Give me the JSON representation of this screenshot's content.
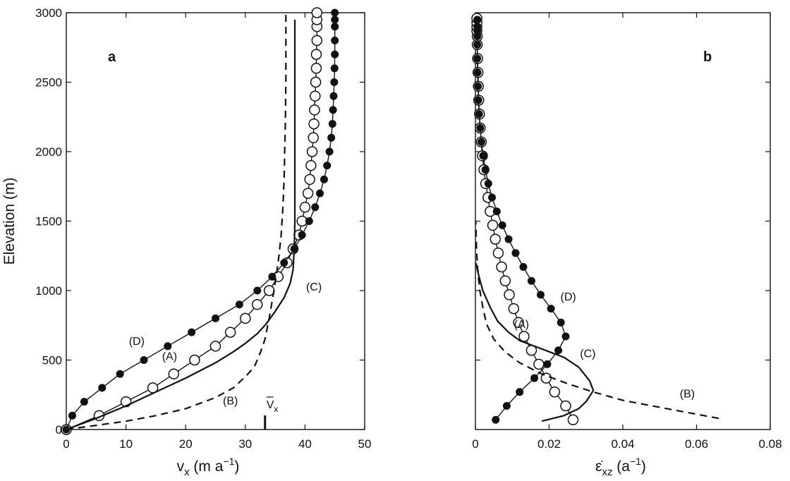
{
  "chart_data": [
    {
      "type": "line",
      "panel_label": "a",
      "xlabel": "v",
      "xlabel_sub": "x",
      "xlabel_unit": " (m a",
      "xlabel_exp": "−1",
      "xlabel_close": ")",
      "ylabel": "Elevation (m)",
      "xlim": [
        0,
        50
      ],
      "ylim": [
        0,
        3000
      ],
      "xticks": [
        "0",
        "10",
        "20",
        "30",
        "40",
        "50"
      ],
      "yticks": [
        "0",
        "500",
        "1000",
        "1500",
        "2000",
        "2500",
        "3000"
      ],
      "mean_marker": {
        "label": "V",
        "label_sub": "x",
        "x": 33.3
      },
      "series": [
        {
          "name": "(A)",
          "style": "open-circle",
          "x": [
            0,
            5.5,
            10,
            14.5,
            18,
            21.5,
            25,
            27.5,
            30,
            32,
            34,
            35.5,
            37,
            38,
            39,
            39.5,
            40,
            40.5,
            40.8,
            41,
            41.2,
            41.4,
            41.5,
            41.6,
            41.7,
            41.8,
            41.9,
            41.9,
            42,
            42,
            42,
            42
          ],
          "y": [
            0,
            100,
            200,
            300,
            400,
            500,
            600,
            700,
            800,
            900,
            1000,
            1100,
            1200,
            1300,
            1400,
            1500,
            1600,
            1700,
            1800,
            1900,
            2000,
            2100,
            2200,
            2300,
            2400,
            2500,
            2600,
            2700,
            2800,
            2900,
            2950,
            3000
          ]
        },
        {
          "name": "(B)",
          "style": "dashed",
          "x": [
            0,
            5,
            10,
            15,
            20,
            25,
            28,
            30,
            31.5,
            32.5,
            33.3,
            34,
            34.8,
            35.5,
            36,
            36.3,
            36.5,
            36.6,
            36.7,
            36.8,
            36.8,
            36.8
          ],
          "y": [
            0,
            30,
            60,
            100,
            150,
            230,
            300,
            380,
            450,
            550,
            650,
            800,
            1000,
            1200,
            1400,
            1600,
            1800,
            2000,
            2200,
            2500,
            2800,
            3000
          ]
        },
        {
          "name": "(C)",
          "style": "solid",
          "x": [
            0,
            5,
            10,
            15,
            20,
            25,
            28,
            30,
            32,
            33.5,
            35,
            36.5,
            37.5,
            38,
            38.2,
            38.3,
            38.3,
            38.3,
            38.3,
            38.3
          ],
          "y": [
            0,
            80,
            170,
            270,
            370,
            480,
            560,
            620,
            690,
            760,
            850,
            950,
            1050,
            1150,
            1300,
            1500,
            1800,
            2200,
            2600,
            2950
          ]
        },
        {
          "name": "(D)",
          "style": "filled-circle",
          "x": [
            0,
            1,
            3,
            6,
            9,
            13,
            17,
            21,
            25,
            29,
            32,
            34.5,
            36.5,
            38.2,
            39.5,
            40.7,
            41.7,
            42.5,
            43.2,
            43.7,
            44.1,
            44.4,
            44.6,
            44.7,
            44.8,
            44.9,
            44.95,
            45,
            45,
            45,
            45,
            45
          ],
          "y": [
            0,
            100,
            200,
            300,
            400,
            500,
            600,
            700,
            800,
            900,
            1000,
            1100,
            1200,
            1300,
            1400,
            1500,
            1600,
            1700,
            1800,
            1900,
            2000,
            2100,
            2200,
            2300,
            2400,
            2500,
            2600,
            2700,
            2800,
            2900,
            2950,
            3000
          ]
        }
      ],
      "annotations": [
        {
          "text": "(A)",
          "x": 17.3,
          "y": 500
        },
        {
          "text": "(B)",
          "x": 27.5,
          "y": 180
        },
        {
          "text": "(C)",
          "x": 41.5,
          "y": 1000
        },
        {
          "text": "(D)",
          "x": 11.8,
          "y": 610
        }
      ]
    },
    {
      "type": "line",
      "panel_label": "b",
      "xlabel": "ε̇",
      "xlabel_sub": "xz",
      "xlabel_unit": " (a",
      "xlabel_exp": "−1",
      "xlabel_close": ")",
      "ylabel": "",
      "xlim": [
        0,
        0.08
      ],
      "ylim": [
        0,
        3000
      ],
      "xticks": [
        "0",
        "0.02",
        "0.04",
        "0.06",
        "0.08"
      ],
      "yticks": [],
      "series": [
        {
          "name": "(A)",
          "style": "open-circle",
          "x": [
            0.0265,
            0.0245,
            0.0215,
            0.0192,
            0.0172,
            0.0152,
            0.0132,
            0.0117,
            0.0104,
            0.0092,
            0.0081,
            0.0071,
            0.0062,
            0.0054,
            0.0047,
            0.004,
            0.0034,
            0.0028,
            0.0023,
            0.0019,
            0.0016,
            0.0013,
            0.0011,
            0.0009,
            0.0008,
            0.0007,
            0.0006,
            0.0005,
            0.0005,
            0.0004,
            0.0004,
            0.0004,
            0.0004
          ],
          "y": [
            70,
            170,
            270,
            370,
            470,
            570,
            670,
            770,
            870,
            970,
            1070,
            1170,
            1270,
            1370,
            1470,
            1570,
            1670,
            1770,
            1870,
            1970,
            2070,
            2170,
            2270,
            2370,
            2470,
            2570,
            2670,
            2770,
            2830,
            2870,
            2900,
            2930,
            2960
          ]
        },
        {
          "name": "(B)",
          "style": "dashed",
          "x": [
            0.066,
            0.05,
            0.04,
            0.032,
            0.025,
            0.018,
            0.012,
            0.008,
            0.005,
            0.003,
            0.002,
            0.0012,
            0.0008,
            0.0005,
            0.0003,
            0.0002,
            0.0001
          ],
          "y": [
            80,
            160,
            210,
            270,
            330,
            400,
            480,
            560,
            650,
            760,
            880,
            1000,
            1100,
            1200,
            1300,
            1400,
            1500
          ]
        },
        {
          "name": "(C)",
          "style": "solid",
          "x": [
            0.018,
            0.024,
            0.028,
            0.03,
            0.032,
            0.031,
            0.028,
            0.024,
            0.02,
            0.016,
            0.012,
            0.009,
            0.006,
            0.004,
            0.002,
            0.001,
            0.0005,
            0.0003,
            0.0002,
            0.0001
          ],
          "y": [
            60,
            100,
            150,
            200,
            280,
            350,
            450,
            520,
            560,
            600,
            640,
            700,
            780,
            880,
            1000,
            1100,
            1150,
            1180,
            1190,
            1200
          ]
        },
        {
          "name": "(D)",
          "style": "filled-circle",
          "x": [
            0.0055,
            0.0085,
            0.012,
            0.016,
            0.0195,
            0.0225,
            0.0245,
            0.0232,
            0.0205,
            0.0177,
            0.0152,
            0.013,
            0.0109,
            0.009,
            0.0073,
            0.0058,
            0.0045,
            0.0035,
            0.0027,
            0.0021,
            0.0016,
            0.0013,
            0.001,
            0.0008,
            0.0007,
            0.0006,
            0.0005,
            0.0005,
            0.0005,
            0.0005,
            0.0005,
            0.0005
          ],
          "y": [
            70,
            170,
            270,
            370,
            470,
            570,
            670,
            770,
            870,
            970,
            1070,
            1170,
            1270,
            1370,
            1470,
            1570,
            1670,
            1770,
            1870,
            1970,
            2070,
            2170,
            2270,
            2370,
            2470,
            2570,
            2670,
            2770,
            2830,
            2870,
            2900,
            2950
          ]
        }
      ],
      "annotations": [
        {
          "text": "(A)",
          "x": 0.0125,
          "y": 730
        },
        {
          "text": "(B)",
          "x": 0.0575,
          "y": 230
        },
        {
          "text": "(C)",
          "x": 0.0305,
          "y": 520
        },
        {
          "text": "(D)",
          "x": 0.0252,
          "y": 930
        }
      ]
    }
  ]
}
